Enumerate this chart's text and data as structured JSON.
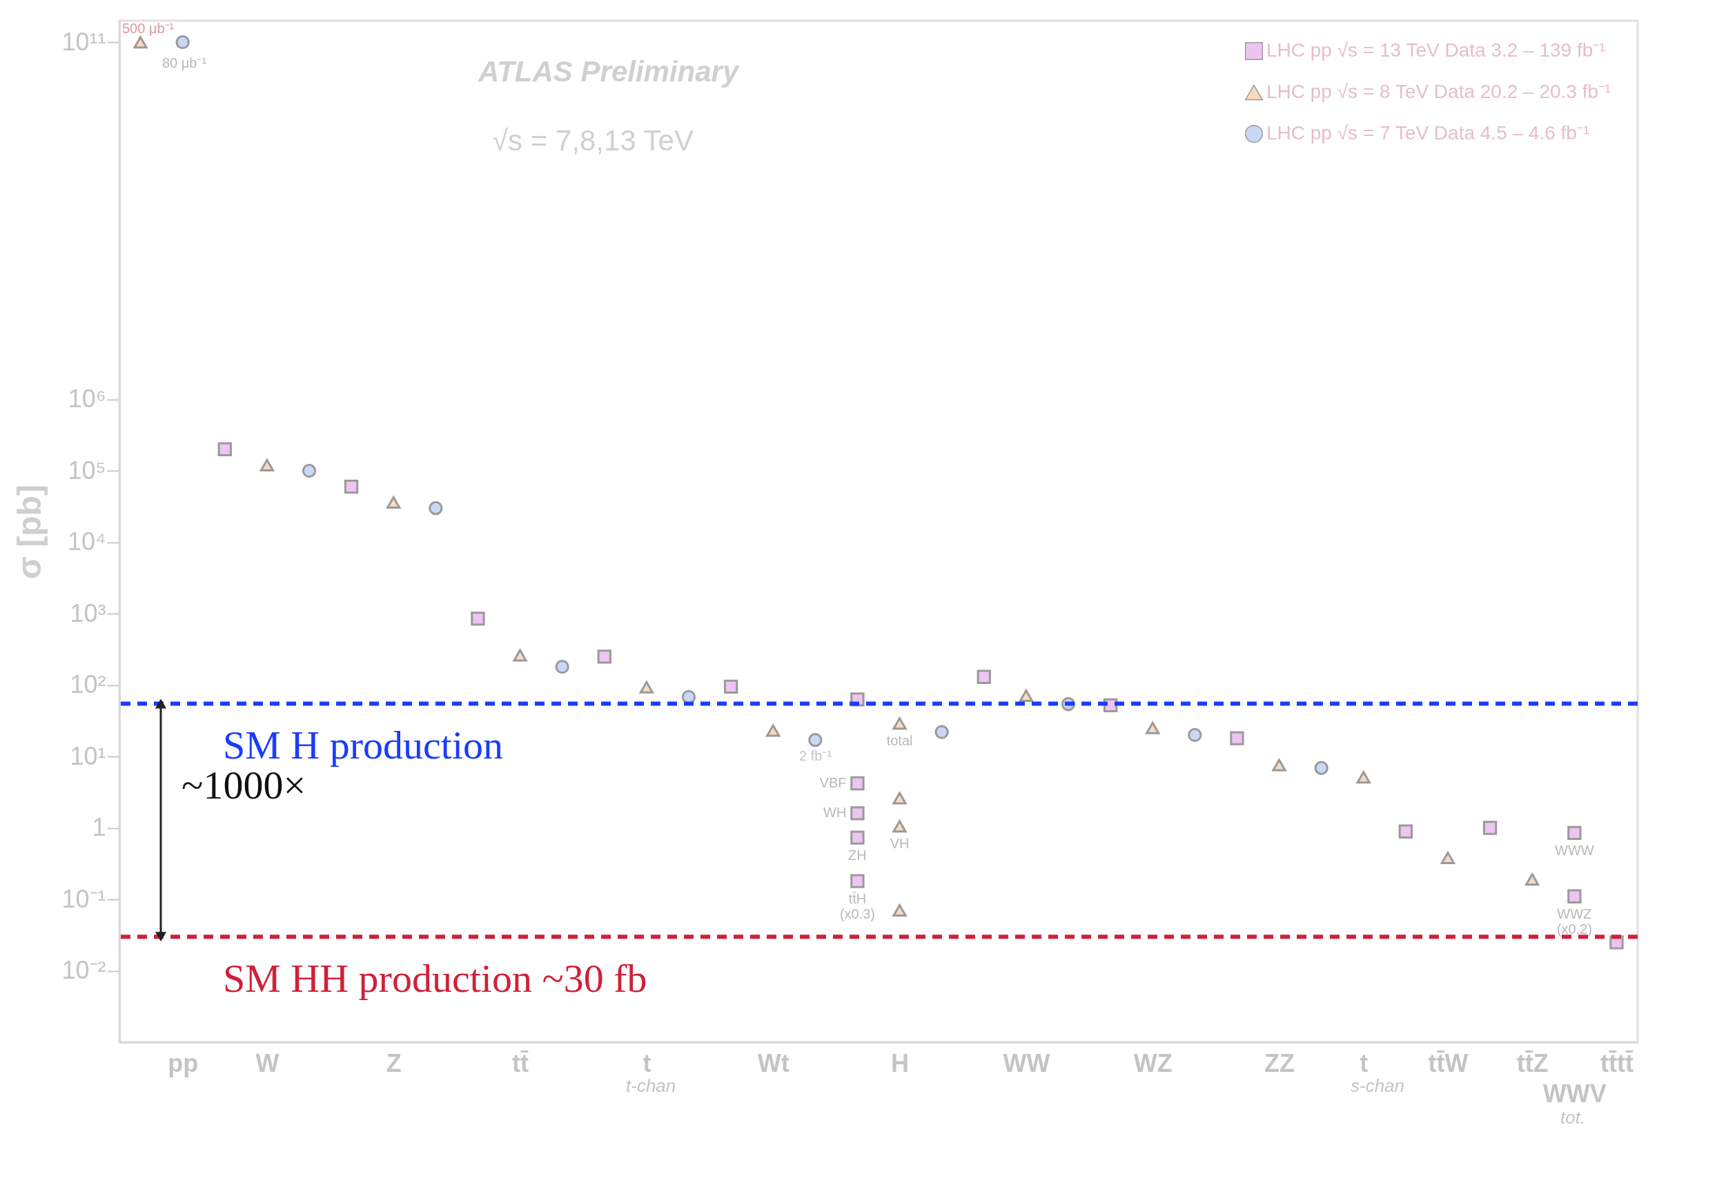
{
  "chart_data": {
    "type": "scatter",
    "ylabel": "σ [pb]",
    "log": true,
    "legend": "top right",
    "ylim": [
      0.001,
      200000000000.0
    ],
    "yticks": [
      {
        "value": 0.01,
        "label": "10⁻²"
      },
      {
        "value": 0.1,
        "label": "10⁻¹"
      },
      1,
      {
        "value": 10,
        "label": "10¹"
      },
      {
        "value": 100,
        "label": "10²"
      },
      {
        "value": 1000,
        "label": "10³"
      },
      {
        "value": 10000,
        "label": "10⁴"
      },
      {
        "value": 100000,
        "label": "10⁵"
      },
      {
        "value": 1000000,
        "label": "10⁶"
      },
      {
        "value": 100000000000,
        "label": "10¹¹"
      }
    ],
    "categories": [
      null,
      "pp",
      null,
      "W",
      null,
      null,
      "Z",
      null,
      null,
      "tt̄",
      null,
      null,
      "t",
      null,
      null,
      "Wt",
      null,
      null,
      "H",
      null,
      null,
      "WW",
      null,
      null,
      "WZ",
      null,
      null,
      "ZZ",
      null,
      "t",
      null,
      "tt̄W",
      null,
      "tt̄Z",
      "WWV",
      "tt̄tt̄"
    ],
    "series": [
      {
        "name": "LHC pp √s = 13 TeV  Data 3.2 – 139 fb⁻¹",
        "color": "#eec4f2",
        "marker": "square",
        "values": [
          null,
          null,
          200000,
          null,
          null,
          60000,
          null,
          null,
          850,
          null,
          null,
          250,
          null,
          null,
          95,
          null,
          null,
          63,
          null,
          null,
          130,
          null,
          null,
          52,
          null,
          null,
          18,
          null,
          null,
          null,
          0.89,
          null,
          1.0,
          null,
          0.85,
          0.025
        ],
        "value_labels": [
          null,
          null,
          null,
          null,
          null,
          null,
          null,
          null,
          null,
          null,
          null,
          null,
          null,
          null,
          null,
          null,
          null,
          null,
          null,
          null,
          null,
          null,
          null,
          null,
          null,
          null,
          null,
          null,
          null,
          null,
          null,
          null,
          null,
          null,
          "WWW",
          null
        ]
      },
      {
        "name": "LHC pp √s = 8 TeV  Data 20.2 – 20.3 fb⁻¹",
        "color": "#fbd9bd",
        "marker": "triangle",
        "values": [
          100000000000,
          null,
          null,
          120000,
          null,
          null,
          36000,
          null,
          null,
          260,
          null,
          null,
          93,
          null,
          null,
          23,
          null,
          null,
          29,
          null,
          null,
          71,
          null,
          null,
          25,
          null,
          null,
          7.6,
          null,
          5.1,
          null,
          0.38,
          null,
          0.19,
          null,
          null
        ],
        "value_labels": [
          null,
          null,
          null,
          null,
          null,
          null,
          null,
          null,
          null,
          null,
          null,
          null,
          null,
          null,
          null,
          null,
          null,
          null,
          "total",
          null,
          null,
          null,
          null,
          null,
          null,
          null,
          null,
          null,
          null,
          null,
          null,
          null,
          null,
          null,
          null,
          null
        ]
      },
      {
        "name": "LHC pp √s = 7 TeV  Data 4.5 – 4.6 fb⁻¹",
        "color": "#c8d9f7",
        "marker": "circle",
        "values": [
          null,
          100000000000,
          null,
          null,
          100000,
          null,
          null,
          30000,
          null,
          null,
          180,
          null,
          null,
          68,
          null,
          null,
          17,
          null,
          null,
          22,
          null,
          null,
          54,
          null,
          null,
          20,
          null,
          null,
          6.9,
          null,
          null,
          null,
          null,
          null,
          null,
          null
        ],
        "value_labels": [
          null,
          null,
          null,
          null,
          null,
          null,
          null,
          null,
          null,
          null,
          null,
          null,
          null,
          null,
          null,
          null,
          null,
          null,
          null,
          null,
          null,
          null,
          null,
          null,
          null,
          null,
          null,
          null,
          null,
          null,
          null,
          null,
          null,
          null,
          null,
          null
        ]
      },
      {
        "color": "#eec4f2",
        "marker": "square",
        "values": [
          null,
          null,
          null,
          null,
          null,
          null,
          null,
          null,
          null,
          null,
          null,
          null,
          null,
          null,
          null,
          null,
          null,
          4.2,
          null,
          null,
          null,
          null,
          null,
          null,
          null,
          null,
          null,
          null,
          null,
          null,
          null,
          null,
          null,
          null,
          0.11,
          null
        ],
        "value_labels": [
          null,
          null,
          null,
          null,
          null,
          null,
          null,
          null,
          null,
          null,
          null,
          null,
          null,
          null,
          null,
          null,
          null,
          "VBF",
          null,
          null,
          null,
          null,
          null,
          null,
          null,
          null,
          null,
          null,
          null,
          null,
          null,
          null,
          null,
          null,
          "WWZ\n(x0.2)",
          null
        ]
      },
      {
        "color": "#eec4f2",
        "marker": "square",
        "values": [
          null,
          null,
          null,
          null,
          null,
          null,
          null,
          null,
          null,
          null,
          null,
          null,
          null,
          null,
          null,
          null,
          null,
          1.6,
          null,
          null,
          null,
          null,
          null,
          null,
          null,
          null,
          null,
          null,
          null,
          null,
          null,
          null,
          null,
          null,
          null,
          null
        ],
        "value_labels": [
          null,
          null,
          null,
          null,
          null,
          null,
          null,
          null,
          null,
          null,
          null,
          null,
          null,
          null,
          null,
          null,
          null,
          "WH",
          null,
          null,
          null,
          null,
          null,
          null,
          null,
          null,
          null,
          null,
          null,
          null,
          null,
          null,
          null,
          null,
          null,
          null
        ]
      },
      {
        "color": "#eec4f2",
        "marker": "square",
        "values": [
          null,
          null,
          null,
          null,
          null,
          null,
          null,
          null,
          null,
          null,
          null,
          null,
          null,
          null,
          null,
          null,
          null,
          0.73,
          null,
          null,
          null,
          null,
          null,
          null,
          null,
          null,
          null,
          null,
          null,
          null,
          null,
          null,
          null,
          null,
          null,
          null
        ],
        "value_labels": [
          null,
          null,
          null,
          null,
          null,
          null,
          null,
          null,
          null,
          null,
          null,
          null,
          null,
          null,
          null,
          null,
          null,
          "ZH",
          null,
          null,
          null,
          null,
          null,
          null,
          null,
          null,
          null,
          null,
          null,
          null,
          null,
          null,
          null,
          null,
          null,
          null
        ]
      },
      {
        "color": "#eec4f2",
        "marker": "square",
        "values": [
          null,
          null,
          null,
          null,
          null,
          null,
          null,
          null,
          null,
          null,
          null,
          null,
          null,
          null,
          null,
          null,
          null,
          0.18,
          null,
          null,
          null,
          null,
          null,
          null,
          null,
          null,
          null,
          null,
          null,
          null,
          null,
          null,
          null,
          null,
          null,
          null
        ],
        "value_labels": [
          null,
          null,
          null,
          null,
          null,
          null,
          null,
          null,
          null,
          null,
          null,
          null,
          null,
          null,
          null,
          null,
          null,
          "tt̄H\n(x0.3)",
          null,
          null,
          null,
          null,
          null,
          null,
          null,
          null,
          null,
          null,
          null,
          null,
          null,
          null,
          null,
          null,
          null,
          null
        ]
      },
      {
        "color": "#fbd9bd",
        "marker": "triangle",
        "values": [
          null,
          null,
          null,
          null,
          null,
          null,
          null,
          null,
          null,
          null,
          null,
          null,
          null,
          null,
          null,
          null,
          null,
          null,
          2.6,
          null,
          null,
          null,
          null,
          null,
          null,
          null,
          null,
          null,
          null,
          null,
          null,
          null,
          null,
          null,
          null,
          null
        ]
      },
      {
        "color": "#fbd9bd",
        "marker": "triangle",
        "values": [
          null,
          null,
          null,
          null,
          null,
          null,
          null,
          null,
          null,
          null,
          null,
          null,
          null,
          null,
          null,
          null,
          null,
          null,
          1.05,
          null,
          null,
          null,
          null,
          null,
          null,
          null,
          null,
          null,
          null,
          null,
          null,
          null,
          null,
          null,
          null,
          null
        ],
        "value_labels": [
          null,
          null,
          null,
          null,
          null,
          null,
          null,
          null,
          null,
          null,
          null,
          null,
          null,
          null,
          null,
          null,
          null,
          null,
          "VH",
          null,
          null,
          null,
          null,
          null,
          null,
          null,
          null,
          null,
          null,
          null,
          null,
          null,
          null,
          null,
          null,
          null
        ]
      },
      {
        "color": "#fbd9bd",
        "marker": "triangle",
        "values": [
          null,
          null,
          null,
          null,
          null,
          null,
          null,
          null,
          null,
          null,
          null,
          null,
          null,
          null,
          null,
          null,
          null,
          null,
          0.07,
          null,
          null,
          null,
          null,
          null,
          null,
          null,
          null,
          null,
          null,
          null,
          null,
          null,
          null,
          null,
          null,
          null
        ]
      }
    ],
    "ref_lines": [
      {
        "axis": "y",
        "value": 55,
        "label": "SM H production",
        "color": "#1a3cff",
        "line_style": "dashed"
      },
      {
        "axis": "y",
        "value": 0.03,
        "label": "SM HH production ~30 fb",
        "color": "#d0203a",
        "line_style": "dashed"
      }
    ],
    "annotations": [
      "ATLAS Preliminary",
      "√s = 7,8,13 TeV",
      "~1000×",
      "500 μb⁻¹",
      "80 μb⁻¹",
      "2 fb⁻¹",
      "t-chan",
      "s-chan",
      "tot."
    ]
  }
}
